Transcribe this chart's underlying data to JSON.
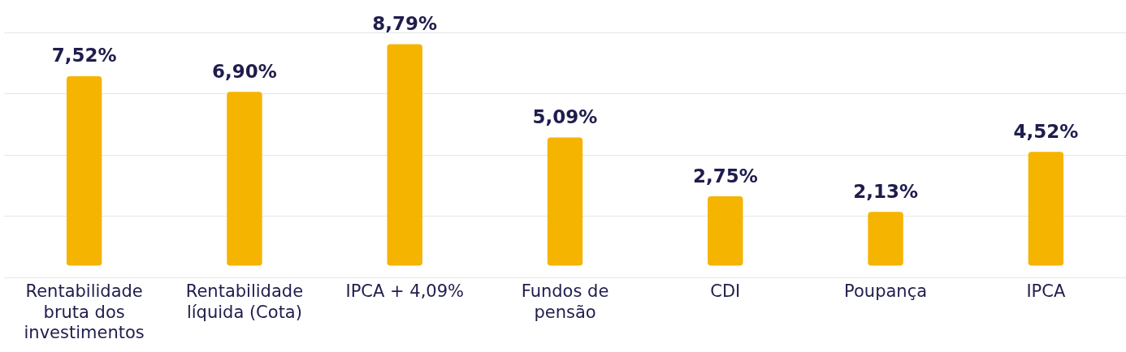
{
  "chart_data": {
    "type": "bar",
    "categories": [
      "Rentabilidade bruta dos investimentos",
      "Rentabilidade líquida (Cota)",
      "IPCA + 4,09%",
      "Fundos de pensão",
      "CDI",
      "Poupança",
      "IPCA"
    ],
    "values": [
      7.52,
      6.9,
      8.79,
      5.09,
      2.75,
      2.13,
      4.52
    ],
    "value_labels": [
      "7,52%",
      "6,90%",
      "8,79%",
      "5,09%",
      "2,75%",
      "2,13%",
      "4,52%"
    ],
    "color": "#f5b400",
    "ylim": [
      -0.48,
      9.26
    ],
    "yticks": [
      {
        "value": -0.48,
        "label": null
      },
      {
        "value": 1.96,
        "label": null
      },
      {
        "value": 4.39,
        "label": null
      },
      {
        "value": 6.82,
        "label": null
      },
      {
        "value": 9.26,
        "label": null
      }
    ],
    "grid": "y",
    "legend": false,
    "tick_labels": "x"
  }
}
